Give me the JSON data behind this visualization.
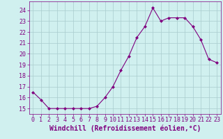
{
  "x": [
    0,
    1,
    2,
    3,
    4,
    5,
    6,
    7,
    8,
    9,
    10,
    11,
    12,
    13,
    14,
    15,
    16,
    17,
    18,
    19,
    20,
    21,
    22,
    23
  ],
  "y": [
    16.5,
    15.8,
    15.0,
    15.0,
    15.0,
    15.0,
    15.0,
    15.0,
    15.2,
    16.0,
    17.0,
    18.5,
    19.8,
    21.5,
    22.5,
    24.2,
    23.0,
    23.3,
    23.3,
    23.3,
    22.5,
    21.3,
    19.5,
    19.2
  ],
  "line_color": "#800080",
  "marker": "D",
  "marker_size": 2,
  "bg_color": "#cff0ee",
  "grid_color": "#aacccc",
  "xlabel": "Windchill (Refroidissement éolien,°C)",
  "xlabel_color": "#800080",
  "xlabel_fontsize": 7,
  "tick_color": "#800080",
  "tick_fontsize": 6,
  "ylim": [
    14.5,
    24.8
  ],
  "xlim": [
    -0.5,
    23.5
  ],
  "yticks": [
    15,
    16,
    17,
    18,
    19,
    20,
    21,
    22,
    23,
    24
  ],
  "xticks": [
    0,
    1,
    2,
    3,
    4,
    5,
    6,
    7,
    8,
    9,
    10,
    11,
    12,
    13,
    14,
    15,
    16,
    17,
    18,
    19,
    20,
    21,
    22,
    23
  ]
}
